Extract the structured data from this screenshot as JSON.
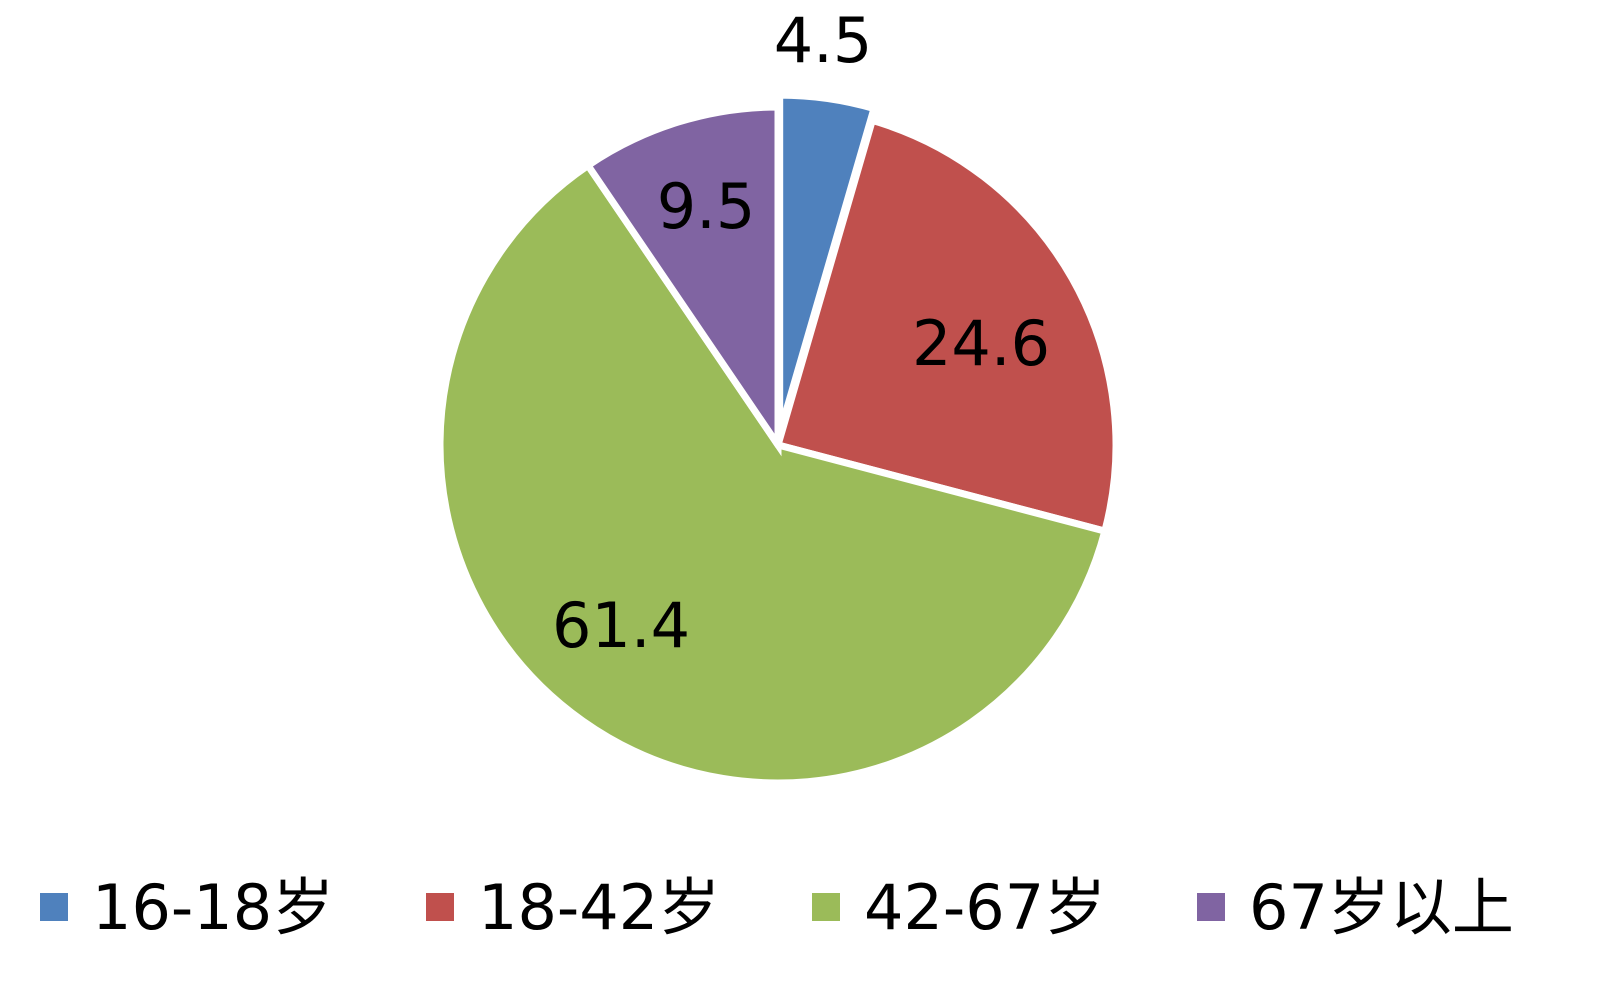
{
  "chart_data": {
    "type": "pie",
    "title": "",
    "start_angle_deg": 0,
    "direction": "clockwise",
    "legend_position": "bottom",
    "slices": [
      {
        "label": "16-18岁",
        "value": 4.5,
        "value_label": "4.5",
        "color": "#4F81BD"
      },
      {
        "label": "18-42岁",
        "value": 24.6,
        "value_label": "24.6",
        "color": "#C0504D"
      },
      {
        "label": "42-67岁",
        "value": 61.4,
        "value_label": "61.4",
        "color": "#9BBB59"
      },
      {
        "label": "67岁以上",
        "value": 9.5,
        "value_label": "9.5",
        "color": "#8064A2"
      }
    ]
  }
}
